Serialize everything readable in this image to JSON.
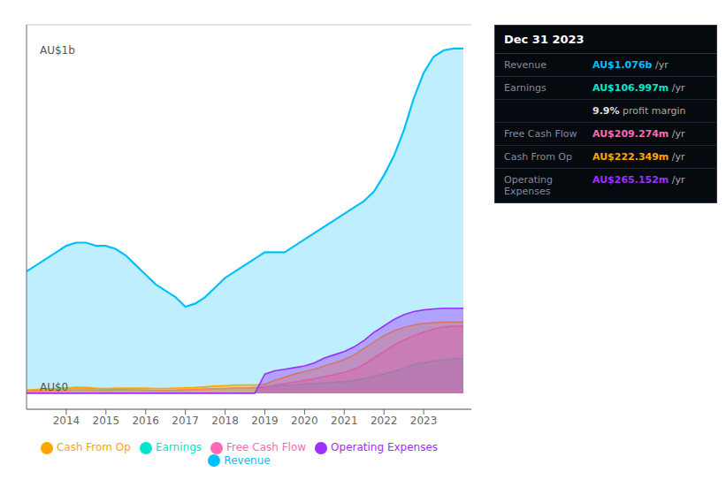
{
  "chart_data": {
    "type": "area",
    "x": [
      2013.0,
      2013.25,
      2013.5,
      2013.75,
      2014.0,
      2014.25,
      2014.5,
      2014.75,
      2015.0,
      2015.25,
      2015.5,
      2015.75,
      2016.0,
      2016.25,
      2016.5,
      2016.75,
      2017.0,
      2017.25,
      2017.5,
      2017.75,
      2018.0,
      2018.25,
      2018.5,
      2018.75,
      2019.0,
      2019.25,
      2019.5,
      2019.75,
      2020.0,
      2020.25,
      2020.5,
      2020.75,
      2021.0,
      2021.25,
      2021.5,
      2021.75,
      2022.0,
      2022.25,
      2022.5,
      2022.75,
      2023.0,
      2023.25,
      2023.5,
      2023.75,
      2024.0
    ],
    "series": [
      {
        "name": "Revenue",
        "color": "#00bfff",
        "values": [
          0.38,
          0.4,
          0.42,
          0.44,
          0.46,
          0.47,
          0.47,
          0.46,
          0.46,
          0.45,
          0.43,
          0.4,
          0.37,
          0.34,
          0.32,
          0.3,
          0.27,
          0.28,
          0.3,
          0.33,
          0.36,
          0.38,
          0.4,
          0.42,
          0.44,
          0.44,
          0.44,
          0.46,
          0.48,
          0.5,
          0.52,
          0.54,
          0.56,
          0.58,
          0.6,
          0.63,
          0.68,
          0.74,
          0.82,
          0.92,
          1.0,
          1.05,
          1.07,
          1.076,
          1.076
        ]
      },
      {
        "name": "Earnings",
        "color": "#00e5cc",
        "values": [
          0.008,
          0.01,
          0.012,
          0.014,
          0.016,
          0.018,
          0.016,
          0.014,
          0.013,
          0.012,
          0.011,
          0.01,
          0.009,
          0.008,
          0.007,
          0.008,
          0.009,
          0.01,
          0.012,
          0.013,
          0.014,
          0.015,
          0.016,
          0.018,
          0.02,
          0.022,
          0.024,
          0.026,
          0.028,
          0.03,
          0.032,
          0.034,
          0.036,
          0.04,
          0.045,
          0.052,
          0.06,
          0.068,
          0.078,
          0.09,
          0.095,
          0.1,
          0.104,
          0.107,
          0.107
        ]
      },
      {
        "name": "Free Cash Flow",
        "color": "#ff69b4",
        "values": [
          0.005,
          0.006,
          0.007,
          0.008,
          0.009,
          0.01,
          0.01,
          0.009,
          0.009,
          0.01,
          0.01,
          0.01,
          0.01,
          0.009,
          0.009,
          0.01,
          0.011,
          0.012,
          0.013,
          0.014,
          0.015,
          0.016,
          0.016,
          0.016,
          0.017,
          0.025,
          0.03,
          0.035,
          0.04,
          0.045,
          0.052,
          0.058,
          0.065,
          0.075,
          0.09,
          0.11,
          0.13,
          0.15,
          0.165,
          0.18,
          0.19,
          0.2,
          0.207,
          0.209,
          0.209
        ]
      },
      {
        "name": "Cash From Op",
        "color": "#ffa500",
        "values": [
          0.01,
          0.012,
          0.014,
          0.015,
          0.016,
          0.018,
          0.018,
          0.016,
          0.015,
          0.016,
          0.016,
          0.016,
          0.016,
          0.015,
          0.015,
          0.016,
          0.017,
          0.018,
          0.02,
          0.022,
          0.024,
          0.026,
          0.026,
          0.026,
          0.028,
          0.04,
          0.05,
          0.06,
          0.068,
          0.075,
          0.085,
          0.095,
          0.105,
          0.12,
          0.14,
          0.16,
          0.18,
          0.195,
          0.205,
          0.213,
          0.218,
          0.22,
          0.222,
          0.222,
          0.222
        ]
      },
      {
        "name": "Operating Expenses",
        "color": "#9b30ff",
        "values": [
          0.0,
          0.0,
          0.0,
          0.0,
          0.0,
          0.0,
          0.0,
          0.0,
          0.0,
          0.0,
          0.0,
          0.0,
          0.0,
          0.0,
          0.0,
          0.0,
          0.0,
          0.0,
          0.0,
          0.0,
          0.0,
          0.0,
          0.0,
          0.0,
          0.06,
          0.07,
          0.075,
          0.08,
          0.085,
          0.095,
          0.11,
          0.12,
          0.13,
          0.145,
          0.165,
          0.19,
          0.21,
          0.23,
          0.245,
          0.255,
          0.26,
          0.263,
          0.265,
          0.265,
          0.265
        ]
      }
    ],
    "xlim": [
      2013.0,
      2024.2
    ],
    "xticks": [
      2014,
      2015,
      2016,
      2017,
      2018,
      2019,
      2020,
      2021,
      2022,
      2023
    ],
    "ylim": [
      -0.05,
      1.15
    ],
    "yticks": [
      0,
      0.5,
      1.0
    ],
    "grid": true,
    "tick_labels": "x",
    "legend": "bottom",
    "annotations": [
      {
        "text": "AU$1b",
        "x": 2013.2,
        "y": 1.07
      },
      {
        "text": "AU$0",
        "x": 2013.2,
        "y": 0.02
      }
    ],
    "info_box": {
      "title": "Dec 31 2023",
      "rows": [
        {
          "label": "Revenue",
          "value": "AU$1.076b",
          "unit": " /yr",
          "color": "#00bfff"
        },
        {
          "label": "Earnings",
          "value": "AU$106.997m",
          "unit": " /yr",
          "color": "#00e5cc"
        },
        {
          "value": "9.9%",
          "unit": " profit margin",
          "color": "#dddddd"
        },
        {
          "label": "Free Cash Flow",
          "value": "AU$209.274m",
          "unit": " /yr",
          "color": "#ff69b4"
        },
        {
          "label": "Cash From Op",
          "value": "AU$222.349m",
          "unit": " /yr",
          "color": "#ffa500"
        },
        {
          "label": "Operating Expenses",
          "value": "AU$265.152m",
          "unit": " /yr",
          "color": "#9b30ff"
        }
      ]
    }
  }
}
